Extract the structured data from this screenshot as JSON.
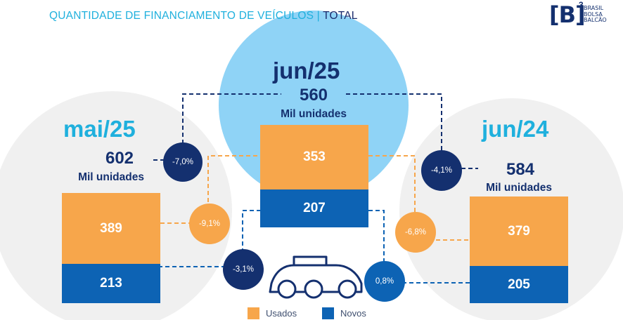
{
  "title": {
    "main": "QUANTIDADE DE FINANCIAMENTO DE VEÍCULOS",
    "separator": "|",
    "suffix": "TOTAL"
  },
  "logo": {
    "mark": "[B]",
    "superscript": "3",
    "line1": "BRASIL",
    "line2": "BOLSA",
    "line3": "BALCÃO"
  },
  "chart_data": {
    "type": "bar",
    "stacked": true,
    "unit_label": "Mil unidades",
    "categories": [
      "mai/25",
      "jun/25",
      "jun/24"
    ],
    "totals": [
      602,
      560,
      584
    ],
    "series": [
      {
        "name": "Usados",
        "color": "#f7a64b",
        "values": [
          389,
          353,
          379
        ]
      },
      {
        "name": "Novos",
        "color": "#0d63b4",
        "values": [
          213,
          207,
          205
        ]
      }
    ],
    "variations": {
      "total": {
        "vs_mai25": "-7,0%",
        "vs_jun24": "-4,1%"
      },
      "usados": {
        "vs_mai25": "-9,1%",
        "vs_jun24": "-6,8%"
      },
      "novos": {
        "vs_mai25": "-3,1%",
        "vs_jun24": "0,8%"
      }
    },
    "legend": [
      "Usados",
      "Novos"
    ],
    "legend_position": "bottom-center"
  },
  "colors": {
    "usados": "#f7a64b",
    "novos": "#0d63b4",
    "navy": "#14306f",
    "cyan": "#1fb0dd",
    "light_blue": "#8fd3f6",
    "light_gray": "#f0f0f0"
  }
}
